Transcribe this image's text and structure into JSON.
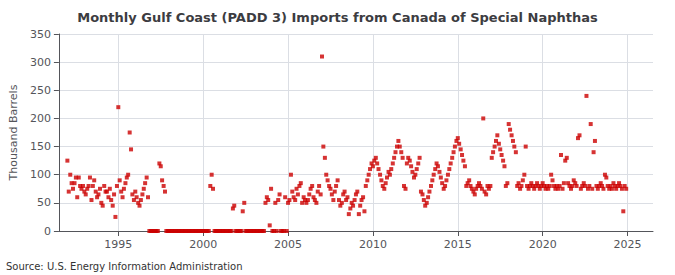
{
  "chart_data": {
    "type": "scatter",
    "title": "Monthly Gulf Coast (PADD 3) Imports from Canada of Special Naphthas",
    "ylabel": "Thousand Barrels",
    "annotation": "Source: U.S. Energy Information Administration",
    "color": "#cc0000",
    "marker": "square",
    "grid": true,
    "xlim": [
      1991.5,
      2026.5
    ],
    "xticks": [
      1995,
      2000,
      2005,
      2010,
      2015,
      2020,
      2025
    ],
    "ylim": [
      0,
      350
    ],
    "yticks": [
      0,
      50,
      100,
      150,
      200,
      250,
      300,
      350
    ],
    "x": [
      1992.0,
      1992.08,
      1992.17,
      1992.25,
      1992.33,
      1992.42,
      1992.5,
      1992.58,
      1992.67,
      1992.75,
      1992.83,
      1992.92,
      1993.0,
      1993.08,
      1993.17,
      1993.25,
      1993.33,
      1993.42,
      1993.5,
      1993.58,
      1993.67,
      1993.75,
      1993.83,
      1993.92,
      1994.0,
      1994.08,
      1994.17,
      1994.25,
      1994.33,
      1994.42,
      1994.5,
      1994.58,
      1994.67,
      1994.75,
      1994.83,
      1994.92,
      1995.0,
      1995.08,
      1995.17,
      1995.25,
      1995.33,
      1995.42,
      1995.5,
      1995.58,
      1995.67,
      1995.75,
      1995.83,
      1995.92,
      1996.0,
      1996.08,
      1996.17,
      1996.25,
      1996.33,
      1996.42,
      1996.5,
      1996.58,
      1996.67,
      1996.75,
      1996.83,
      1996.92,
      1997.0,
      1997.08,
      1997.17,
      1997.25,
      1997.33,
      1997.42,
      1997.5,
      1997.58,
      1997.67,
      1997.75,
      1997.83,
      1997.92,
      1998.0,
      1998.08,
      1998.17,
      1998.25,
      1998.33,
      1998.42,
      1998.5,
      1998.58,
      1998.67,
      1998.75,
      1998.83,
      1998.92,
      1999.0,
      1999.08,
      1999.17,
      1999.25,
      1999.33,
      1999.42,
      1999.5,
      1999.58,
      1999.67,
      1999.75,
      1999.83,
      1999.92,
      2000.0,
      2000.08,
      2000.17,
      2000.25,
      2000.33,
      2000.42,
      2000.5,
      2000.58,
      2000.67,
      2000.75,
      2000.83,
      2000.92,
      2001.0,
      2001.08,
      2001.17,
      2001.25,
      2001.33,
      2001.42,
      2001.5,
      2001.58,
      2001.67,
      2001.75,
      2001.83,
      2001.92,
      2002.0,
      2002.08,
      2002.17,
      2002.25,
      2002.33,
      2002.42,
      2002.5,
      2002.58,
      2002.67,
      2002.75,
      2002.83,
      2002.92,
      2003.0,
      2003.08,
      2003.17,
      2003.25,
      2003.33,
      2003.42,
      2003.5,
      2003.58,
      2003.67,
      2003.75,
      2003.83,
      2003.92,
      2004.0,
      2004.08,
      2004.17,
      2004.25,
      2004.33,
      2004.42,
      2004.5,
      2004.58,
      2004.67,
      2004.75,
      2004.83,
      2004.92,
      2005.0,
      2005.08,
      2005.17,
      2005.25,
      2005.33,
      2005.42,
      2005.5,
      2005.58,
      2005.67,
      2005.75,
      2005.83,
      2005.92,
      2006.0,
      2006.08,
      2006.17,
      2006.25,
      2006.33,
      2006.42,
      2006.5,
      2006.58,
      2006.67,
      2006.75,
      2006.83,
      2006.92,
      2007.0,
      2007.08,
      2007.17,
      2007.25,
      2007.33,
      2007.42,
      2007.5,
      2007.58,
      2007.67,
      2007.75,
      2007.83,
      2007.92,
      2008.0,
      2008.08,
      2008.17,
      2008.25,
      2008.33,
      2008.42,
      2008.5,
      2008.58,
      2008.67,
      2008.75,
      2008.83,
      2008.92,
      2009.0,
      2009.08,
      2009.17,
      2009.25,
      2009.33,
      2009.42,
      2009.5,
      2009.58,
      2009.67,
      2009.75,
      2009.83,
      2009.92,
      2010.0,
      2010.08,
      2010.17,
      2010.25,
      2010.33,
      2010.42,
      2010.5,
      2010.58,
      2010.67,
      2010.75,
      2010.83,
      2010.92,
      2011.0,
      2011.08,
      2011.17,
      2011.25,
      2011.33,
      2011.42,
      2011.5,
      2011.58,
      2011.67,
      2011.75,
      2011.83,
      2011.92,
      2012.0,
      2012.08,
      2012.17,
      2012.25,
      2012.33,
      2012.42,
      2012.5,
      2012.58,
      2012.67,
      2012.75,
      2012.83,
      2012.92,
      2013.0,
      2013.08,
      2013.17,
      2013.25,
      2013.33,
      2013.42,
      2013.5,
      2013.58,
      2013.67,
      2013.75,
      2013.83,
      2013.92,
      2014.0,
      2014.08,
      2014.17,
      2014.25,
      2014.33,
      2014.42,
      2014.5,
      2014.58,
      2014.67,
      2014.75,
      2014.83,
      2014.92,
      2015.0,
      2015.08,
      2015.17,
      2015.25,
      2015.33,
      2015.42,
      2015.5,
      2015.58,
      2015.67,
      2015.75,
      2015.83,
      2015.92,
      2016.0,
      2016.08,
      2016.17,
      2016.25,
      2016.33,
      2016.42,
      2016.5,
      2016.58,
      2016.67,
      2016.75,
      2016.83,
      2016.92,
      2017.0,
      2017.08,
      2017.17,
      2017.25,
      2017.33,
      2017.42,
      2017.5,
      2017.58,
      2017.67,
      2017.75,
      2017.83,
      2017.92,
      2018.0,
      2018.08,
      2018.17,
      2018.25,
      2018.33,
      2018.42,
      2018.5,
      2018.58,
      2018.67,
      2018.75,
      2018.83,
      2018.92,
      2019.0,
      2019.08,
      2019.17,
      2019.25,
      2019.33,
      2019.42,
      2019.5,
      2019.58,
      2019.67,
      2019.75,
      2019.83,
      2019.92,
      2020.0,
      2020.08,
      2020.17,
      2020.25,
      2020.33,
      2020.42,
      2020.5,
      2020.58,
      2020.67,
      2020.75,
      2020.83,
      2020.92,
      2021.0,
      2021.08,
      2021.17,
      2021.25,
      2021.33,
      2021.42,
      2021.5,
      2021.58,
      2021.67,
      2021.75,
      2021.83,
      2021.92,
      2022.0,
      2022.08,
      2022.17,
      2022.25,
      2022.33,
      2022.42,
      2022.5,
      2022.58,
      2022.67,
      2022.75,
      2022.83,
      2022.92,
      2023.0,
      2023.08,
      2023.17,
      2023.25,
      2023.33,
      2023.42,
      2023.5,
      2023.58,
      2023.67,
      2023.75,
      2023.83,
      2023.92,
      2024.0,
      2024.08,
      2024.17,
      2024.25,
      2024.33,
      2024.42,
      2024.5,
      2024.58,
      2024.67,
      2024.75,
      2024.83,
      2024.92
    ],
    "values": [
      125,
      70,
      100,
      85,
      75,
      85,
      95,
      60,
      95,
      80,
      75,
      80,
      70,
      65,
      75,
      80,
      95,
      55,
      80,
      90,
      70,
      60,
      65,
      75,
      50,
      45,
      80,
      70,
      70,
      60,
      75,
      55,
      45,
      65,
      25,
      80,
      220,
      90,
      70,
      60,
      75,
      85,
      95,
      100,
      175,
      145,
      65,
      55,
      70,
      60,
      50,
      45,
      55,
      65,
      75,
      85,
      95,
      60,
      0,
      0,
      0,
      0,
      0,
      0,
      0,
      120,
      115,
      90,
      80,
      70,
      0,
      0,
      0,
      0,
      0,
      0,
      0,
      0,
      0,
      0,
      0,
      0,
      0,
      0,
      0,
      0,
      0,
      0,
      0,
      0,
      0,
      0,
      0,
      0,
      0,
      0,
      0,
      0,
      0,
      0,
      0,
      80,
      100,
      75,
      0,
      0,
      0,
      0,
      0,
      0,
      0,
      0,
      0,
      0,
      0,
      0,
      0,
      40,
      45,
      0,
      0,
      0,
      0,
      0,
      35,
      50,
      0,
      0,
      0,
      0,
      0,
      0,
      0,
      0,
      0,
      0,
      0,
      0,
      0,
      0,
      50,
      60,
      55,
      10,
      75,
      0,
      0,
      50,
      0,
      55,
      65,
      0,
      0,
      0,
      60,
      0,
      50,
      55,
      100,
      70,
      60,
      55,
      75,
      65,
      80,
      85,
      50,
      60,
      55,
      50,
      55,
      65,
      75,
      80,
      60,
      55,
      50,
      70,
      80,
      65,
      310,
      150,
      130,
      100,
      90,
      80,
      75,
      65,
      55,
      70,
      80,
      90,
      55,
      45,
      50,
      65,
      70,
      55,
      60,
      30,
      40,
      50,
      45,
      55,
      65,
      70,
      30,
      45,
      55,
      60,
      35,
      80,
      90,
      100,
      110,
      120,
      115,
      125,
      130,
      120,
      110,
      100,
      90,
      80,
      75,
      85,
      95,
      105,
      100,
      110,
      120,
      130,
      140,
      150,
      160,
      150,
      140,
      130,
      80,
      75,
      120,
      130,
      125,
      115,
      105,
      95,
      100,
      110,
      120,
      130,
      70,
      65,
      55,
      45,
      50,
      60,
      70,
      80,
      90,
      100,
      110,
      120,
      115,
      105,
      95,
      85,
      75,
      80,
      90,
      100,
      110,
      120,
      130,
      140,
      150,
      160,
      165,
      155,
      145,
      135,
      125,
      115,
      80,
      85,
      90,
      80,
      75,
      70,
      65,
      75,
      80,
      85,
      80,
      75,
      200,
      70,
      65,
      80,
      75,
      80,
      130,
      140,
      150,
      160,
      170,
      155,
      145,
      135,
      125,
      115,
      80,
      85,
      190,
      180,
      170,
      160,
      150,
      140,
      80,
      85,
      75,
      80,
      90,
      100,
      150,
      80,
      75,
      80,
      85,
      80,
      75,
      80,
      85,
      80,
      75,
      80,
      85,
      80,
      75,
      80,
      75,
      80,
      100,
      90,
      80,
      75,
      80,
      75,
      80,
      135,
      75,
      85,
      125,
      130,
      85,
      80,
      75,
      80,
      90,
      85,
      80,
      165,
      170,
      75,
      80,
      85,
      80,
      240,
      75,
      80,
      190,
      75,
      140,
      160,
      80,
      75,
      80,
      85,
      80,
      75,
      100,
      95,
      80,
      75,
      80,
      75,
      85,
      80,
      75,
      80,
      85,
      80,
      75,
      35,
      80,
      75
    ]
  }
}
